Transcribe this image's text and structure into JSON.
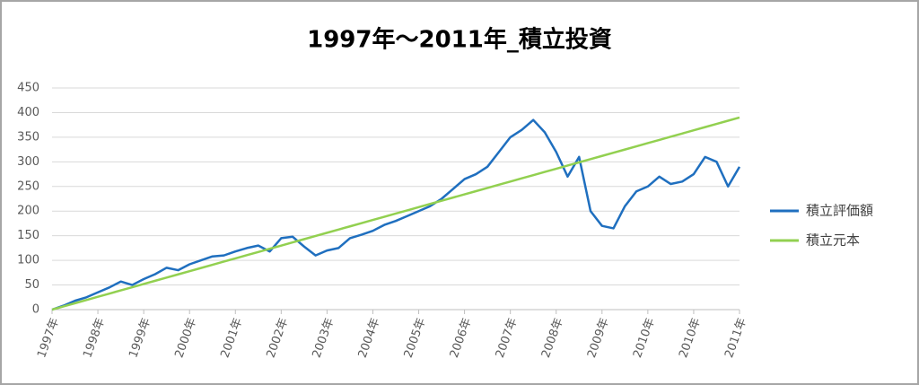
{
  "chart_data": {
    "type": "line",
    "title": "1997年～2011年_積立投資",
    "categories": [
      "1997年",
      null,
      null,
      null,
      "1998年",
      null,
      null,
      null,
      "1999年",
      null,
      null,
      null,
      "2000年",
      null,
      null,
      null,
      "2001年",
      null,
      null,
      null,
      "2002年",
      null,
      null,
      null,
      "2003年",
      null,
      null,
      null,
      "2004年",
      null,
      null,
      null,
      "2005年",
      null,
      null,
      null,
      "2006年",
      null,
      null,
      null,
      "2007年",
      null,
      null,
      null,
      "2008年",
      null,
      null,
      null,
      "2009年",
      null,
      null,
      null,
      "2010年",
      null,
      null,
      null,
      "2010年",
      null,
      null,
      null,
      "2011年"
    ],
    "series": [
      {
        "name": "積立評価額",
        "color": "#1f6fbf",
        "values": [
          0,
          8,
          18,
          25,
          35,
          45,
          57,
          50,
          62,
          72,
          85,
          80,
          92,
          100,
          108,
          110,
          118,
          125,
          130,
          118,
          145,
          148,
          128,
          110,
          120,
          125,
          145,
          152,
          160,
          172,
          180,
          190,
          200,
          210,
          225,
          245,
          265,
          275,
          290,
          320,
          350,
          365,
          385,
          360,
          320,
          270,
          310,
          200,
          170,
          165,
          210,
          240,
          250,
          270,
          255,
          260,
          275,
          310,
          300,
          250,
          290
        ]
      },
      {
        "name": "積立元本",
        "color": "#92d050",
        "values": [
          0,
          6.5,
          13,
          19.5,
          26,
          32.5,
          39,
          45.5,
          52,
          58.5,
          65,
          71.5,
          78,
          84.5,
          91,
          97.5,
          104,
          110.5,
          117,
          123.5,
          130,
          136.5,
          143,
          149.5,
          156,
          162.5,
          169,
          175.5,
          182,
          188.5,
          195,
          201.5,
          208,
          214.5,
          221,
          227.5,
          234,
          240.5,
          247,
          253.5,
          260,
          266.5,
          273,
          279.5,
          286,
          292.5,
          299,
          305.5,
          312,
          318.5,
          325,
          331.5,
          338,
          344.5,
          351,
          357.5,
          364,
          370.5,
          377,
          383.5,
          390
        ]
      }
    ],
    "ylim": [
      0,
      450
    ],
    "yticks": [
      0,
      50,
      100,
      150,
      200,
      250,
      300,
      350,
      400,
      450
    ],
    "grid": true,
    "legend": "right"
  }
}
